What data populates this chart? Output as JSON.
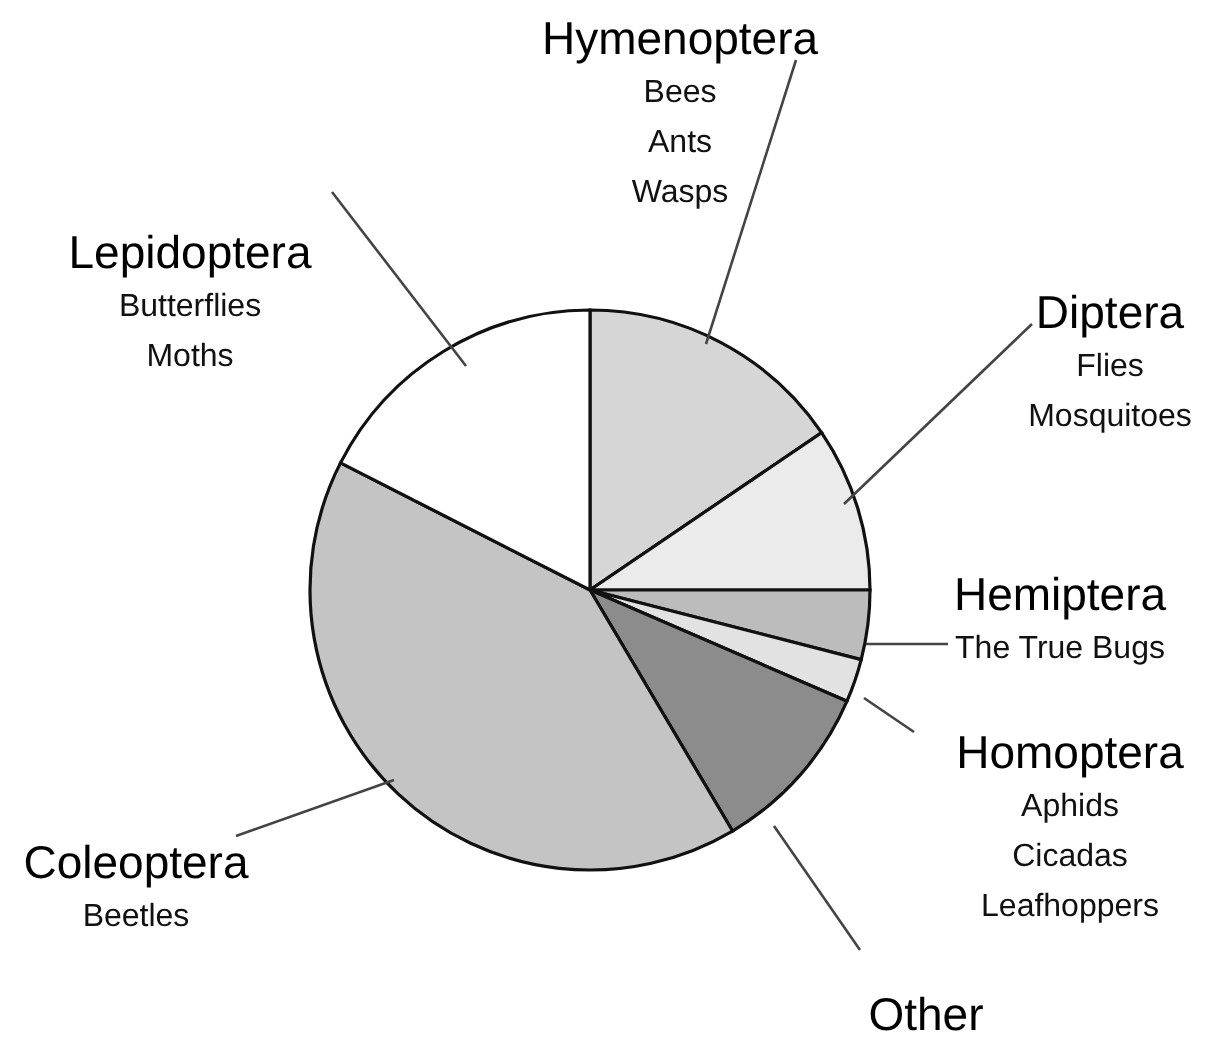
{
  "chart_data": {
    "type": "pie",
    "categories": [
      "Hymenoptera",
      "Diptera",
      "Hemiptera",
      "Homoptera",
      "Other",
      "Coleoptera",
      "Lepidoptera"
    ],
    "values": [
      15.5,
      9.5,
      4,
      2.5,
      10,
      41,
      17.5
    ],
    "colors": [
      "#d6d6d6",
      "#ebebeb",
      "#bcbcbc",
      "#e2e2e2",
      "#8c8c8c",
      "#c4c4c4",
      "#ffffff"
    ],
    "annotations": [
      {
        "text": "Bees\nAnts\nWasps",
        "x": "Hymenoptera"
      },
      {
        "text": "Flies\nMosquitoes",
        "x": "Diptera"
      },
      {
        "text": "The True Bugs",
        "x": "Hemiptera"
      },
      {
        "text": "Aphids\nCicadas\nLeafhoppers",
        "x": "Homoptera"
      },
      {
        "text": "Beetles",
        "x": "Coleoptera"
      },
      {
        "text": "Butterflies\nMoths",
        "x": "Lepidoptera"
      }
    ]
  }
}
